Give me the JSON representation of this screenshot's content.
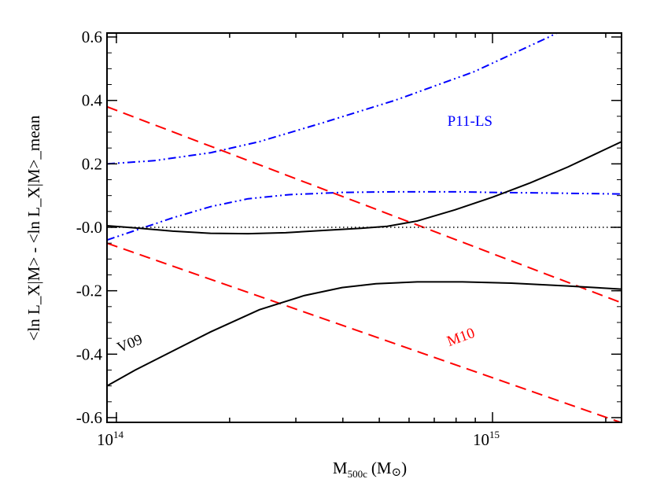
{
  "chart_data": {
    "type": "line",
    "xlabel": "M",
    "xlabel_sub": "500c",
    "xlabel_unit": "(M",
    "xlabel_unit_end": ")",
    "ylabel": "<ln L_X|M> - <ln L_X|M>_mean",
    "xscale": "log",
    "xlim_log10": [
      13.975,
      15.343
    ],
    "ylim": [
      -0.62,
      0.62
    ],
    "yticks": [
      -0.6,
      -0.4,
      -0.2,
      0.0,
      0.2,
      0.4,
      0.6
    ],
    "ytick_labels": [
      "-0.6",
      "-0.4",
      "-0.2",
      "-0.0",
      "0.2",
      "0.4",
      "0.6"
    ],
    "xticks": [
      {
        "base": "10",
        "exp": "14",
        "log10": 14
      },
      {
        "base": "10",
        "exp": "15",
        "log10": 15
      }
    ],
    "series": [
      {
        "name": "P11-LS upper",
        "color": "#0000ff",
        "style": "dashdotdot",
        "x": [
          13.975,
          14.1,
          14.25,
          14.38,
          14.55,
          14.74,
          14.95,
          15.15,
          15.2
        ],
        "y": [
          0.2,
          0.21,
          0.235,
          0.27,
          0.33,
          0.4,
          0.49,
          0.6,
          0.63
        ]
      },
      {
        "name": "P11-LS lower",
        "color": "#0000ff",
        "style": "dashdotdot",
        "x": [
          13.975,
          14.05,
          14.15,
          14.25,
          14.35,
          14.46,
          14.6,
          14.75,
          14.9,
          15.0,
          15.15,
          15.343
        ],
        "y": [
          -0.04,
          -0.01,
          0.03,
          0.065,
          0.09,
          0.103,
          0.11,
          0.112,
          0.112,
          0.11,
          0.108,
          0.105
        ]
      },
      {
        "name": "M10 upper",
        "color": "#ff0000",
        "style": "dashed",
        "x": [
          13.975,
          15.343
        ],
        "y": [
          0.38,
          -0.238
        ]
      },
      {
        "name": "M10 lower",
        "color": "#ff0000",
        "style": "dashed",
        "x": [
          13.975,
          15.343
        ],
        "y": [
          -0.05,
          -0.616
        ]
      },
      {
        "name": "V09 upper",
        "color": "#000000",
        "style": "solid",
        "x": [
          13.975,
          14.05,
          14.15,
          14.25,
          14.35,
          14.45,
          14.55,
          14.65,
          14.72,
          14.8,
          14.9,
          15.0,
          15.1,
          15.2,
          15.343
        ],
        "y": [
          0.005,
          -0.002,
          -0.012,
          -0.019,
          -0.02,
          -0.017,
          -0.01,
          -0.003,
          0.003,
          0.02,
          0.055,
          0.095,
          0.14,
          0.19,
          0.27
        ]
      },
      {
        "name": "V09 lower",
        "color": "#000000",
        "style": "solid",
        "x": [
          13.975,
          14.05,
          14.15,
          14.25,
          14.38,
          14.5,
          14.6,
          14.69,
          14.8,
          14.92,
          15.05,
          15.2,
          15.343
        ],
        "y": [
          -0.5,
          -0.45,
          -0.39,
          -0.33,
          -0.26,
          -0.215,
          -0.19,
          -0.178,
          -0.172,
          -0.172,
          -0.176,
          -0.185,
          -0.195
        ]
      },
      {
        "name": "zero",
        "color": "#000000",
        "style": "dotted",
        "x": [
          13.975,
          15.343
        ],
        "y": [
          0,
          0
        ]
      }
    ],
    "annotations": [
      {
        "text": "P11-LS",
        "color": "#0000ff",
        "x": 14.94,
        "y": 0.32
      },
      {
        "text": "M10",
        "color": "#ff0000",
        "x": 14.92,
        "y": -0.36
      },
      {
        "text": "V09",
        "color": "#000000",
        "x": 14.04,
        "y": -0.38
      }
    ]
  }
}
